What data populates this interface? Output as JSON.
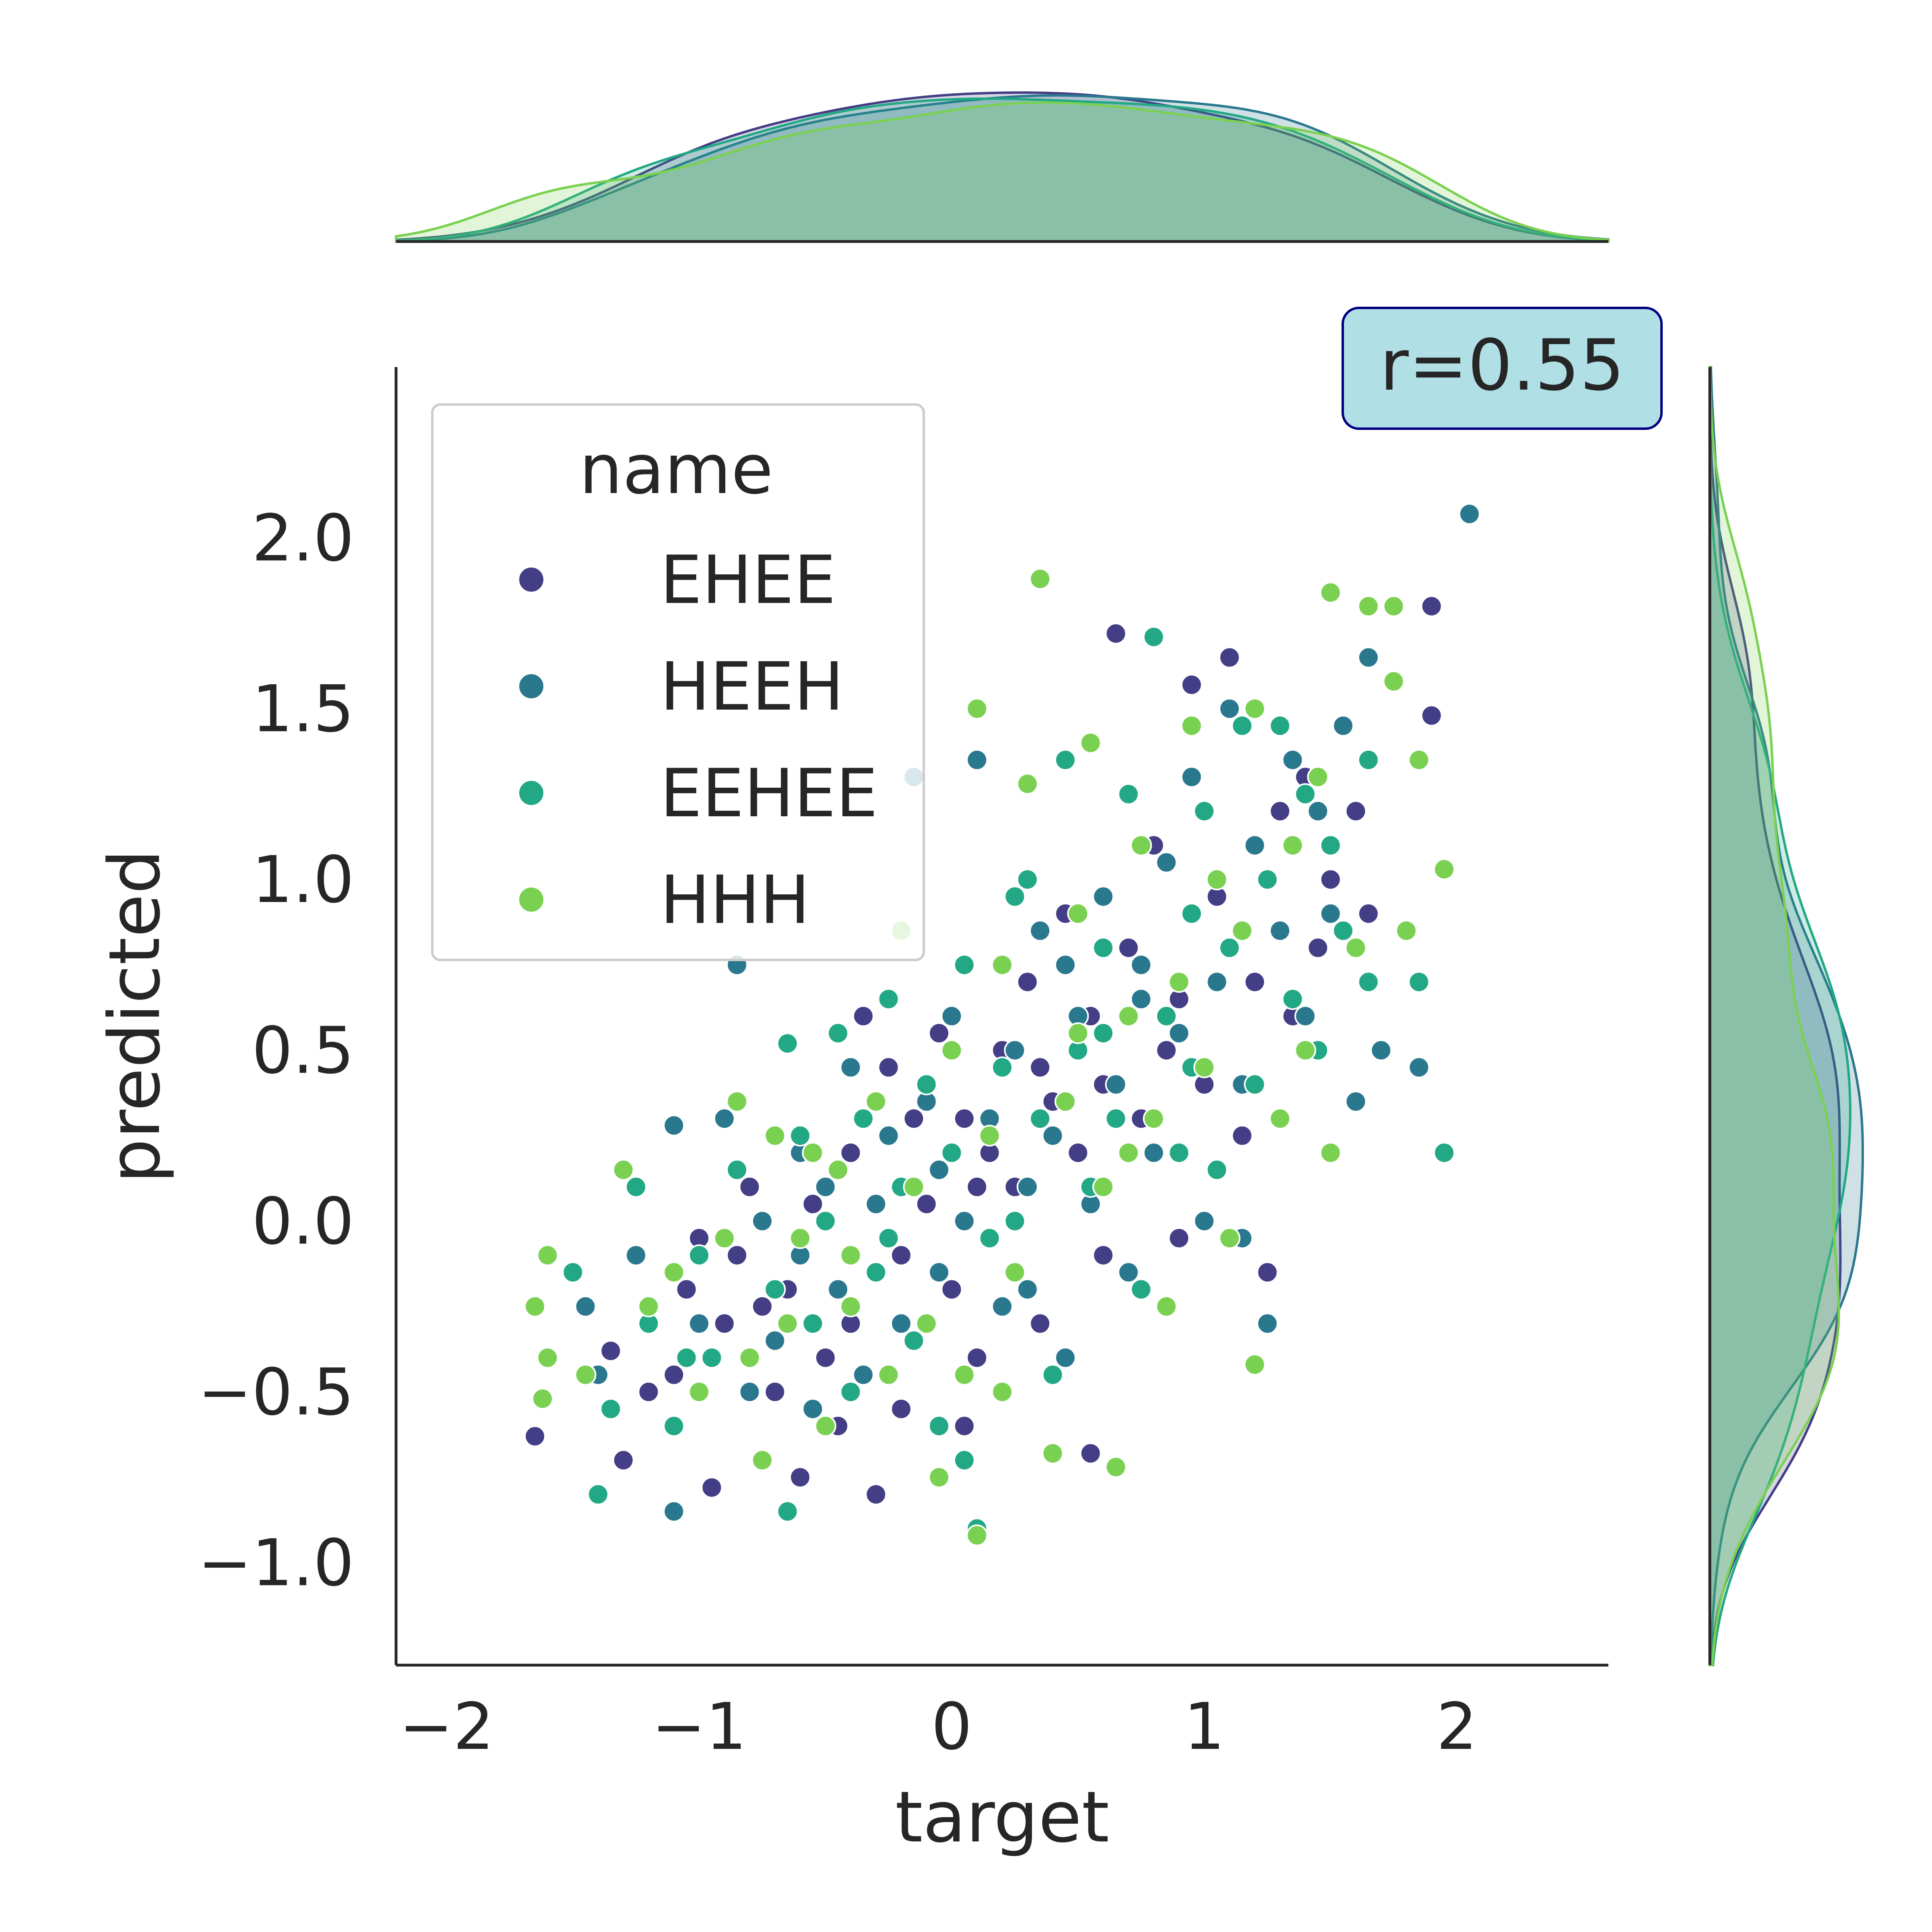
{
  "chart_data": {
    "type": "scatter",
    "xlabel": "target",
    "ylabel": "predicted",
    "xlim": [
      -2.2,
      2.6
    ],
    "ylim": [
      -1.3,
      2.5
    ],
    "x_ticks": [
      -2,
      -1,
      0,
      1,
      2
    ],
    "x_tick_labels": [
      "−2",
      "−1",
      "0",
      "1",
      "2"
    ],
    "y_ticks": [
      -1.0,
      -0.5,
      0.0,
      0.5,
      1.0,
      1.5,
      2.0
    ],
    "y_tick_labels": [
      "−1.0",
      "−0.5",
      "0.0",
      "0.5",
      "1.0",
      "1.5",
      "2.0"
    ],
    "grid": false,
    "annotation": "r=0.55",
    "legend": {
      "title": "name",
      "placement": "upper-left",
      "entries": [
        "EHEE",
        "HEEH",
        "EEHEE",
        "HHH"
      ]
    },
    "marginals": "kde",
    "series": [
      {
        "name": "EHEE",
        "color": "#433e85",
        "points": [
          [
            -1.65,
            -0.63
          ],
          [
            -1.35,
            -0.38
          ],
          [
            -1.3,
            -0.7
          ],
          [
            -1.2,
            -0.5
          ],
          [
            -1.1,
            -0.45
          ],
          [
            -1.05,
            -0.2
          ],
          [
            -0.95,
            -0.78
          ],
          [
            -0.9,
            -0.3
          ],
          [
            -0.85,
            -0.1
          ],
          [
            -0.8,
            0.1
          ],
          [
            -0.7,
            -0.5
          ],
          [
            -0.65,
            -0.2
          ],
          [
            -0.6,
            -0.75
          ],
          [
            -0.55,
            0.05
          ],
          [
            -0.5,
            -0.4
          ],
          [
            -0.45,
            -0.6
          ],
          [
            -0.4,
            0.2
          ],
          [
            -0.35,
            0.6
          ],
          [
            -0.3,
            -0.8
          ],
          [
            -0.25,
            0.45
          ],
          [
            -0.2,
            -0.1
          ],
          [
            -0.15,
            0.3
          ],
          [
            -0.1,
            0.05
          ],
          [
            -0.05,
            0.55
          ],
          [
            0.0,
            -0.2
          ],
          [
            0.05,
            0.3
          ],
          [
            0.1,
            -0.4
          ],
          [
            0.15,
            0.2
          ],
          [
            0.2,
            0.5
          ],
          [
            0.25,
            0.1
          ],
          [
            0.3,
            0.7
          ],
          [
            0.35,
            -0.3
          ],
          [
            0.4,
            0.35
          ],
          [
            0.45,
            0.9
          ],
          [
            0.5,
            0.2
          ],
          [
            0.55,
            0.6
          ],
          [
            0.6,
            -0.1
          ],
          [
            0.65,
            1.72
          ],
          [
            0.7,
            0.8
          ],
          [
            0.75,
            0.3
          ],
          [
            0.8,
            1.1
          ],
          [
            0.85,
            0.5
          ],
          [
            0.9,
            -0.05
          ],
          [
            0.95,
            1.57
          ],
          [
            1.0,
            0.4
          ],
          [
            1.05,
            0.95
          ],
          [
            1.1,
            1.65
          ],
          [
            1.15,
            0.25
          ],
          [
            1.2,
            0.7
          ],
          [
            1.25,
            -0.15
          ],
          [
            1.3,
            1.2
          ],
          [
            1.35,
            0.6
          ],
          [
            1.4,
            1.3
          ],
          [
            1.45,
            0.8
          ],
          [
            1.5,
            1.0
          ],
          [
            1.55,
            1.45
          ],
          [
            1.6,
            1.2
          ],
          [
            1.65,
            0.9
          ],
          [
            1.9,
            1.8
          ],
          [
            1.9,
            1.48
          ],
          [
            -0.4,
            -0.3
          ],
          [
            0.1,
            0.1
          ],
          [
            0.6,
            0.4
          ],
          [
            -0.2,
            -0.55
          ],
          [
            0.35,
            0.45
          ],
          [
            0.9,
            0.65
          ],
          [
            -0.75,
            -0.25
          ],
          [
            0.05,
            -0.6
          ],
          [
            0.55,
            -0.68
          ],
          [
            -1.0,
            -0.05
          ]
        ]
      },
      {
        "name": "HEEH",
        "color": "#2a788e",
        "points": [
          [
            -1.45,
            -0.25
          ],
          [
            -1.4,
            -0.45
          ],
          [
            -1.25,
            -0.1
          ],
          [
            -1.1,
            -0.85
          ],
          [
            -1.1,
            0.28
          ],
          [
            -1.0,
            -0.3
          ],
          [
            -0.9,
            0.3
          ],
          [
            -0.8,
            -0.5
          ],
          [
            -0.75,
            0.0
          ],
          [
            -0.7,
            -0.35
          ],
          [
            -0.6,
            0.2
          ],
          [
            -0.55,
            -0.55
          ],
          [
            -0.5,
            0.1
          ],
          [
            -0.45,
            -0.2
          ],
          [
            -0.4,
            0.45
          ],
          [
            -0.35,
            -0.45
          ],
          [
            -0.3,
            0.05
          ],
          [
            -0.25,
            0.25
          ],
          [
            -0.2,
            -0.3
          ],
          [
            -0.15,
            1.3
          ],
          [
            -0.1,
            0.35
          ],
          [
            -0.05,
            -0.15
          ],
          [
            0.0,
            0.6
          ],
          [
            0.05,
            0.0
          ],
          [
            0.1,
            1.35
          ],
          [
            0.15,
            0.3
          ],
          [
            0.2,
            -0.25
          ],
          [
            0.25,
            0.5
          ],
          [
            0.3,
            0.1
          ],
          [
            0.35,
            0.85
          ],
          [
            0.4,
            0.25
          ],
          [
            0.45,
            -0.4
          ],
          [
            0.5,
            0.6
          ],
          [
            0.55,
            0.05
          ],
          [
            0.6,
            0.95
          ],
          [
            0.65,
            0.4
          ],
          [
            0.7,
            -0.15
          ],
          [
            0.75,
            0.75
          ],
          [
            0.8,
            0.2
          ],
          [
            0.85,
            1.05
          ],
          [
            0.9,
            0.55
          ],
          [
            0.95,
            1.3
          ],
          [
            1.0,
            0.0
          ],
          [
            1.05,
            0.7
          ],
          [
            1.1,
            1.5
          ],
          [
            1.15,
            0.4
          ],
          [
            1.2,
            1.1
          ],
          [
            1.25,
            -0.3
          ],
          [
            1.3,
            0.85
          ],
          [
            1.35,
            1.35
          ],
          [
            1.4,
            0.6
          ],
          [
            1.45,
            1.2
          ],
          [
            1.5,
            0.9
          ],
          [
            1.55,
            1.45
          ],
          [
            1.6,
            0.35
          ],
          [
            1.65,
            1.65
          ],
          [
            1.7,
            0.5
          ],
          [
            1.85,
            0.45
          ],
          [
            2.05,
            2.07
          ],
          [
            -0.85,
            0.75
          ],
          [
            0.3,
            -0.2
          ],
          [
            -0.6,
            -0.1
          ],
          [
            0.75,
            0.65
          ],
          [
            1.15,
            -0.05
          ],
          [
            -0.05,
            0.15
          ],
          [
            0.45,
            0.75
          ]
        ]
      },
      {
        "name": "EEHEE",
        "color": "#22a884",
        "points": [
          [
            -1.5,
            -0.15
          ],
          [
            -1.4,
            -0.8
          ],
          [
            -1.35,
            -0.55
          ],
          [
            -1.25,
            0.1
          ],
          [
            -1.2,
            -0.3
          ],
          [
            -1.1,
            -0.6
          ],
          [
            -1.0,
            -0.1
          ],
          [
            -0.95,
            -0.4
          ],
          [
            -0.85,
            0.15
          ],
          [
            -0.75,
            -0.7
          ],
          [
            -0.7,
            -0.2
          ],
          [
            -0.65,
            -0.85
          ],
          [
            -0.6,
            0.25
          ],
          [
            -0.55,
            -0.3
          ],
          [
            -0.5,
            0.0
          ],
          [
            -0.45,
            0.55
          ],
          [
            -0.4,
            -0.5
          ],
          [
            -0.35,
            0.3
          ],
          [
            -0.3,
            -0.15
          ],
          [
            -0.25,
            0.65
          ],
          [
            -0.2,
            0.1
          ],
          [
            -0.15,
            -0.35
          ],
          [
            -0.1,
            0.4
          ],
          [
            -0.05,
            -0.6
          ],
          [
            0.0,
            0.2
          ],
          [
            0.05,
            0.75
          ],
          [
            0.1,
            -0.9
          ],
          [
            0.15,
            -0.05
          ],
          [
            0.2,
            0.45
          ],
          [
            0.25,
            0.0
          ],
          [
            0.3,
            1.0
          ],
          [
            0.35,
            0.3
          ],
          [
            0.4,
            -0.45
          ],
          [
            0.45,
            1.35
          ],
          [
            0.5,
            0.5
          ],
          [
            0.55,
            0.1
          ],
          [
            0.6,
            0.8
          ],
          [
            0.65,
            0.3
          ],
          [
            0.7,
            1.25
          ],
          [
            0.75,
            -0.2
          ],
          [
            0.8,
            1.71
          ],
          [
            0.85,
            0.6
          ],
          [
            0.9,
            0.2
          ],
          [
            0.95,
            0.9
          ],
          [
            1.0,
            1.2
          ],
          [
            1.05,
            0.15
          ],
          [
            1.1,
            0.8
          ],
          [
            1.15,
            1.45
          ],
          [
            1.2,
            0.4
          ],
          [
            1.25,
            1.0
          ],
          [
            1.3,
            1.45
          ],
          [
            1.35,
            0.65
          ],
          [
            1.4,
            1.25
          ],
          [
            1.45,
            0.5
          ],
          [
            1.5,
            1.1
          ],
          [
            1.55,
            0.85
          ],
          [
            1.65,
            0.7
          ],
          [
            1.65,
            1.35
          ],
          [
            1.85,
            0.7
          ],
          [
            1.95,
            0.2
          ],
          [
            -0.65,
            0.52
          ],
          [
            0.05,
            -0.7
          ],
          [
            0.6,
            0.55
          ],
          [
            -0.25,
            -0.05
          ],
          [
            0.25,
            0.95
          ],
          [
            0.95,
            0.45
          ],
          [
            -1.05,
            -0.4
          ]
        ]
      },
      {
        "name": "HHH",
        "color": "#7ad151",
        "points": [
          [
            -1.65,
            -0.25
          ],
          [
            -1.6,
            -0.1
          ],
          [
            -1.6,
            -0.4
          ],
          [
            -1.62,
            -0.52
          ],
          [
            -1.45,
            -0.45
          ],
          [
            -1.3,
            0.15
          ],
          [
            -1.2,
            -0.25
          ],
          [
            -1.1,
            -0.15
          ],
          [
            -1.0,
            -0.5
          ],
          [
            -0.9,
            -0.05
          ],
          [
            -0.8,
            -0.4
          ],
          [
            -0.75,
            -0.7
          ],
          [
            -0.7,
            0.25
          ],
          [
            -0.65,
            -0.3
          ],
          [
            -0.6,
            -0.05
          ],
          [
            -0.55,
            0.2
          ],
          [
            -0.5,
            -0.6
          ],
          [
            -0.45,
            0.15
          ],
          [
            -0.4,
            -0.25
          ],
          [
            -0.3,
            0.35
          ],
          [
            -0.25,
            -0.45
          ],
          [
            -0.2,
            0.85
          ],
          [
            -0.15,
            0.1
          ],
          [
            -0.1,
            -0.3
          ],
          [
            -0.05,
            -0.75
          ],
          [
            0.0,
            0.5
          ],
          [
            0.05,
            -0.45
          ],
          [
            0.1,
            1.5
          ],
          [
            0.1,
            -0.92
          ],
          [
            0.15,
            0.25
          ],
          [
            0.2,
            0.75
          ],
          [
            0.25,
            -0.15
          ],
          [
            0.3,
            1.28
          ],
          [
            0.35,
            1.88
          ],
          [
            0.4,
            -0.68
          ],
          [
            0.45,
            0.35
          ],
          [
            0.5,
            0.9
          ],
          [
            0.55,
            1.4
          ],
          [
            0.6,
            0.1
          ],
          [
            0.65,
            -0.72
          ],
          [
            0.7,
            0.6
          ],
          [
            0.75,
            1.1
          ],
          [
            0.8,
            0.3
          ],
          [
            0.85,
            -0.25
          ],
          [
            0.9,
            0.7
          ],
          [
            0.95,
            1.45
          ],
          [
            1.0,
            0.45
          ],
          [
            1.05,
            1.0
          ],
          [
            1.1,
            -0.05
          ],
          [
            1.15,
            0.85
          ],
          [
            1.2,
            1.5
          ],
          [
            1.2,
            -0.42
          ],
          [
            1.3,
            0.3
          ],
          [
            1.35,
            1.1
          ],
          [
            1.4,
            0.5
          ],
          [
            1.45,
            1.3
          ],
          [
            1.5,
            0.2
          ],
          [
            1.5,
            1.84
          ],
          [
            1.6,
            0.8
          ],
          [
            1.65,
            1.8
          ],
          [
            1.75,
            1.8
          ],
          [
            1.75,
            1.58
          ],
          [
            1.8,
            0.85
          ],
          [
            1.85,
            1.35
          ],
          [
            1.95,
            1.03
          ],
          [
            -0.4,
            -0.1
          ],
          [
            0.2,
            -0.5
          ],
          [
            0.7,
            0.2
          ],
          [
            -0.85,
            0.35
          ],
          [
            0.5,
            0.55
          ]
        ]
      }
    ]
  }
}
